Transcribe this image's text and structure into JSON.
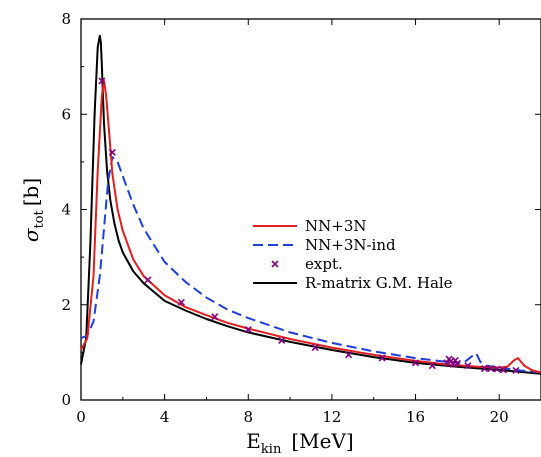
{
  "chart_data": {
    "type": "line",
    "xlabel": "E",
    "xlabel_sub": "kin",
    "xlabel_unit": "[MeV]",
    "ylabel": "σ",
    "ylabel_sub": "tot",
    "ylabel_unit": "[b]",
    "xlim": [
      0,
      22
    ],
    "ylim": [
      0,
      8
    ],
    "x_ticks": [
      0,
      4,
      8,
      12,
      16,
      20
    ],
    "x_tick_labels": [
      "0",
      "4",
      "8",
      "12",
      "16",
      "20"
    ],
    "y_ticks": [
      0,
      2,
      4,
      6,
      8
    ],
    "y_tick_labels": [
      "0",
      "2",
      "4",
      "6",
      "8"
    ],
    "grid": false,
    "legend_position": "center-right",
    "series": [
      {
        "name": "NN+3N",
        "style": "solid",
        "color": "#e02020",
        "x": [
          0,
          0.3,
          0.6,
          0.8,
          1.0,
          1.1,
          1.2,
          1.35,
          1.5,
          1.75,
          2.0,
          2.5,
          3.0,
          4.0,
          5.0,
          6.0,
          7.0,
          8.0,
          10.0,
          12.0,
          14.0,
          16.0,
          17.0,
          17.8,
          18.0,
          19.0,
          20.0,
          20.4,
          20.7,
          20.9,
          21.2,
          21.6,
          22.0
        ],
        "y": [
          1.05,
          1.3,
          2.6,
          4.8,
          6.4,
          6.7,
          6.4,
          5.6,
          4.75,
          4.0,
          3.55,
          2.95,
          2.6,
          2.2,
          1.95,
          1.78,
          1.62,
          1.5,
          1.28,
          1.1,
          0.95,
          0.82,
          0.77,
          0.73,
          0.73,
          0.7,
          0.68,
          0.7,
          0.83,
          0.88,
          0.72,
          0.62,
          0.58
        ]
      },
      {
        "name": "NN+3N-ind",
        "style": "dashed",
        "color": "#1f3fd8",
        "x": [
          0,
          0.3,
          0.6,
          0.9,
          1.1,
          1.3,
          1.5,
          1.75,
          2.0,
          2.5,
          3.0,
          4.0,
          5.0,
          6.0,
          7.0,
          8.0,
          10.0,
          12.0,
          14.0,
          16.0,
          17.5,
          18.3,
          18.7,
          18.9,
          19.1,
          19.4,
          20.0,
          21.0,
          22.0
        ],
        "y": [
          1.3,
          1.35,
          1.65,
          2.6,
          3.6,
          4.6,
          5.1,
          5.0,
          4.7,
          4.1,
          3.6,
          2.9,
          2.48,
          2.15,
          1.9,
          1.72,
          1.42,
          1.2,
          1.02,
          0.88,
          0.8,
          0.78,
          0.92,
          0.98,
          0.8,
          0.72,
          0.68,
          0.62,
          0.58
        ]
      },
      {
        "name": "expt.",
        "style": "markers",
        "color": "#800080",
        "x": [
          1.0,
          1.5,
          3.2,
          4.8,
          6.4,
          8.0,
          9.6,
          11.2,
          12.8,
          14.4,
          16.0,
          16.8,
          17.5,
          17.6,
          17.7,
          17.8,
          17.9,
          18.0,
          18.5,
          19.3,
          19.6,
          19.9,
          20.2,
          20.8
        ],
        "y": [
          6.7,
          5.2,
          2.52,
          2.05,
          1.75,
          1.48,
          1.25,
          1.1,
          0.95,
          0.88,
          0.78,
          0.72,
          0.78,
          0.86,
          0.82,
          0.75,
          0.83,
          0.77,
          0.72,
          0.66,
          0.66,
          0.65,
          0.63,
          0.62
        ]
      },
      {
        "name": "R-matrix G.M. Hale",
        "style": "solid",
        "color": "#000000",
        "x": [
          0,
          0.25,
          0.45,
          0.65,
          0.8,
          0.9,
          0.95,
          1.0,
          1.1,
          1.25,
          1.4,
          1.6,
          1.8,
          2.0,
          2.5,
          3.0,
          4.0,
          5.0,
          6.0,
          7.0,
          8.0,
          10.0,
          12.0,
          14.0,
          16.0,
          18.0,
          20.0,
          22.0
        ],
        "y": [
          0.75,
          1.3,
          3.3,
          6.0,
          7.4,
          7.65,
          7.5,
          7.0,
          5.8,
          4.8,
          4.2,
          3.7,
          3.35,
          3.1,
          2.7,
          2.45,
          2.08,
          1.88,
          1.7,
          1.55,
          1.42,
          1.22,
          1.05,
          0.9,
          0.78,
          0.7,
          0.63,
          0.55
        ]
      }
    ]
  }
}
